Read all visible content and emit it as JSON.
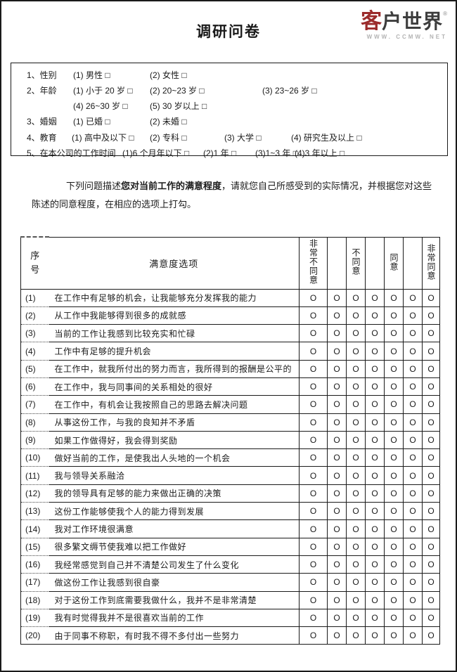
{
  "page": {
    "title": "调研问卷"
  },
  "logo": {
    "brand_first": "客",
    "brand_rest": "户世界",
    "reg": "®",
    "tagline": "WWW. CCMW. NET",
    "accent_color": "#9b2b2b",
    "text_color": "#3d3d3d"
  },
  "demographics": {
    "lines": [
      {
        "label": "1、性别",
        "options": [
          "(1) 男性  □",
          "(2) 女性  □"
        ]
      },
      {
        "label": "2、年龄",
        "options": [
          "(1) 小于 20 岁  □",
          "(2) 20~23 岁  □",
          "(3) 23~26 岁  □"
        ]
      },
      {
        "label": "",
        "options": [
          "(4) 26~30 岁  □",
          "(5) 30 岁以上  □"
        ]
      },
      {
        "label": "3、婚姻",
        "options": [
          "(1) 已婚  □",
          "(2) 未婚  □"
        ]
      },
      {
        "label": "4、教育",
        "options": [
          "(1) 高中及以下  □",
          "(2) 专科  □",
          "(3) 大学  □",
          "(4) 研究生及以上  □"
        ]
      },
      {
        "label": "5、在本公司的工作时间",
        "options": [
          "(1)6 个月年以下  □",
          "(2)1 年  □",
          "(3)1~3 年  □",
          "(4)3 年以上  □"
        ]
      }
    ]
  },
  "instructions": {
    "lead": "下列问题描述",
    "bold": "您对当前工作的满意程度",
    "rest": "，请就您自己所感受到的实际情况，并根据您对这些陈述的同意程度，在相应的选项上打勾。"
  },
  "table": {
    "headers": {
      "col_no_line1": "序",
      "col_no_line2": "号",
      "col_items": "满意度选项",
      "ratings": [
        "非常不同意",
        "",
        "不同意",
        "",
        "同意",
        "",
        "非常同意"
      ]
    },
    "option_mark": "O",
    "rows": [
      {
        "no": "(1)",
        "text": "在工作中有足够的机会，让我能够充分发挥我的能力"
      },
      {
        "no": "(2)",
        "text": "从工作中我能够得到很多的成就感"
      },
      {
        "no": "(3)",
        "text": "当前的工作让我感到比较充实和忙碌"
      },
      {
        "no": "(4)",
        "text": "工作中有足够的提升机会"
      },
      {
        "no": "(5)",
        "text": "在工作中，就我所付出的努力而言，我所得到的报酬是公平的"
      },
      {
        "no": "(6)",
        "text": "在工作中，我与同事间的关系相处的很好"
      },
      {
        "no": "(7)",
        "text": "在工作中，有机会让我按照自己的思路去解决问题"
      },
      {
        "no": "(8)",
        "text": "从事这份工作，与我的良知并不矛盾"
      },
      {
        "no": "(9)",
        "text": "如果工作做得好，我会得到奖励"
      },
      {
        "no": "(10)",
        "text": "做好当前的工作，是使我出人头地的一个机会"
      },
      {
        "no": "(11)",
        "text": "我与领导关系融洽"
      },
      {
        "no": "(12)",
        "text": "我的领导具有足够的能力来做出正确的决策"
      },
      {
        "no": "(13)",
        "text": "这份工作能够使我个人的能力得到发展"
      },
      {
        "no": "(14)",
        "text": "我对工作环境很满意"
      },
      {
        "no": "(15)",
        "text": "很多繁文缛节使我难以把工作做好"
      },
      {
        "no": "(16)",
        "text": "我经常感觉到自己并不清楚公司发生了什么变化"
      },
      {
        "no": "(17)",
        "text": "做这份工作让我感到很自豪"
      },
      {
        "no": "(18)",
        "text": "对于这份工作到底需要我做什么，我并不是非常清楚"
      },
      {
        "no": "(19)",
        "text": "我有时觉得我并不是很喜欢当前的工作"
      },
      {
        "no": "(20)",
        "text": "由于同事不称职，有时我不得不多付出一些努力"
      }
    ]
  }
}
